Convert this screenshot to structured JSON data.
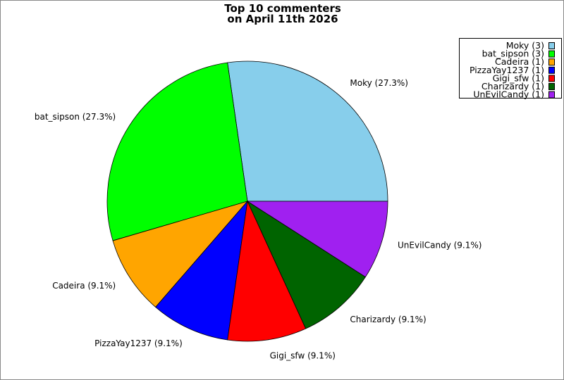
{
  "chart_data": {
    "type": "pie",
    "title": [
      "Top 10 commenters",
      "on April 11th 2026"
    ],
    "start_angle_deg": 0,
    "direction": "counterclockwise",
    "legend_position": "top-right",
    "slices": [
      {
        "name": "Moky",
        "count": 3,
        "percent": 27.3,
        "label": "Moky (27.3%)",
        "legend": "Moky (3)",
        "color": "#87CEEB"
      },
      {
        "name": "bat_sipson",
        "count": 3,
        "percent": 27.3,
        "label": "bat_sipson (27.3%)",
        "legend": "bat_sipson (3)",
        "color": "#00FF00"
      },
      {
        "name": "Cadeira",
        "count": 1,
        "percent": 9.1,
        "label": "Cadeira (9.1%)",
        "legend": "Cadeira (1)",
        "color": "#FFA500"
      },
      {
        "name": "PizzaYay1237",
        "count": 1,
        "percent": 9.1,
        "label": "PizzaYay1237 (9.1%)",
        "legend": "PizzaYay1237 (1)",
        "color": "#0000FF"
      },
      {
        "name": "Gigi_sfw",
        "count": 1,
        "percent": 9.1,
        "label": "Gigi_sfw (9.1%)",
        "legend": "Gigi_sfw (1)",
        "color": "#FF0000"
      },
      {
        "name": "Charizardy",
        "count": 1,
        "percent": 9.1,
        "label": "Charizardy (9.1%)",
        "legend": "Charizardy (1)",
        "color": "#006400"
      },
      {
        "name": "UnEvilCandy",
        "count": 1,
        "percent": 9.1,
        "label": "UnEvilCandy (9.1%)",
        "legend": "UnEvilCandy (1)",
        "color": "#A020F0"
      }
    ]
  }
}
